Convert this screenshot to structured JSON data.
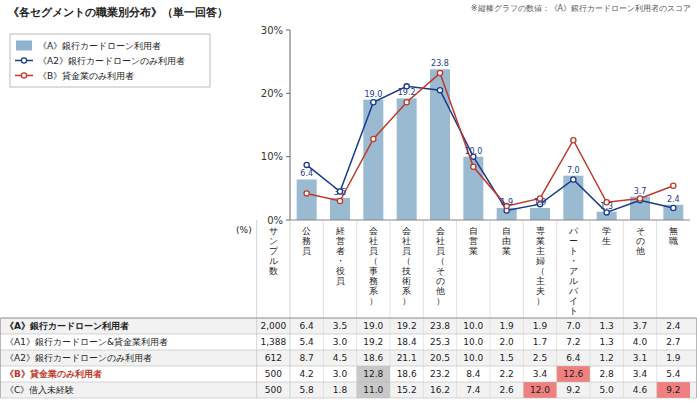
{
  "chart_data": {
    "type": "bar",
    "title": "《各セグメントの職業別分布》（単一回答）",
    "note": "※縦棒グラフの数値：《A》銀行カードローン利用者のスコア",
    "categories": [
      "公務員",
      "経営者・役員",
      "会社員（事務系）",
      "会社員（技術系）",
      "会社員（その他）",
      "自営業",
      "自由業",
      "専業主婦（主夫）",
      "パート・アルバイト",
      "学生",
      "その他",
      "無職"
    ],
    "series": [
      {
        "name": "《A》銀行カードローン利用者",
        "type": "bar",
        "color": "#8fb3cc",
        "values": [
          6.4,
          3.5,
          19.0,
          19.2,
          23.8,
          10.0,
          1.9,
          1.9,
          7.0,
          1.3,
          3.7,
          2.4
        ],
        "value_labels": [
          "6.4",
          "3.5",
          "19.0",
          "19.2",
          "23.8",
          "10.0",
          "1.9",
          "1.9",
          "7.0",
          "1.3",
          "3.7",
          "2.4"
        ],
        "data_labels": true
      },
      {
        "name": "《A2》銀行カードローンのみ利用者",
        "type": "line",
        "color": "#1a3a8c",
        "marker": "circle",
        "values": [
          8.7,
          4.5,
          18.6,
          21.1,
          20.5,
          10.0,
          1.5,
          2.5,
          6.4,
          1.2,
          3.1,
          1.9
        ]
      },
      {
        "name": "《B》貸金業のみ利用者",
        "type": "line",
        "color": "#c0392b",
        "marker": "circle",
        "values": [
          4.2,
          3.0,
          12.8,
          18.6,
          23.2,
          8.4,
          2.2,
          3.4,
          12.6,
          2.8,
          3.4,
          5.4
        ]
      }
    ],
    "ylim": [
      0,
      30
    ],
    "yticks": [
      {
        "value": 0,
        "label": "0%"
      },
      {
        "value": 10,
        "label": "10%"
      },
      {
        "value": 20,
        "label": "20%"
      },
      {
        "value": 30,
        "label": "30%"
      }
    ],
    "grid": false,
    "legend": "left",
    "table": {
      "n_header": "サンプル数",
      "unit": "(%)",
      "rows": [
        {
          "label": "《A》銀行カードローン利用者",
          "n": "2,000",
          "bold": true,
          "values": [
            6.4,
            3.5,
            19.0,
            19.2,
            23.8,
            10.0,
            1.9,
            1.9,
            7.0,
            1.3,
            3.7,
            2.4
          ],
          "value_labels": [
            "6.4",
            "3.5",
            "19.0",
            "19.2",
            "23.8",
            "10.0",
            "1.9",
            "1.9",
            "7.0",
            "1.3",
            "3.7",
            "2.4"
          ],
          "colors": [
            null,
            null,
            null,
            null,
            null,
            null,
            null,
            null,
            null,
            null,
            null,
            null
          ]
        },
        {
          "label": "《A1》銀行カードローン&貸金業利用者",
          "n": "1,388",
          "bold": false,
          "values": [
            5.4,
            3.0,
            19.2,
            18.4,
            25.3,
            10.0,
            2.0,
            1.7,
            7.2,
            1.3,
            4.0,
            2.7
          ],
          "value_labels": [
            "5.4",
            "3.0",
            "19.2",
            "18.4",
            "25.3",
            "10.0",
            "2.0",
            "1.7",
            "7.2",
            "1.3",
            "4.0",
            "2.7"
          ],
          "colors": [
            null,
            null,
            null,
            null,
            null,
            null,
            null,
            null,
            null,
            null,
            null,
            null
          ]
        },
        {
          "label": "《A2》銀行カードローンのみ利用者",
          "n": "612",
          "bold": false,
          "values": [
            8.7,
            4.5,
            18.6,
            21.1,
            20.5,
            10.0,
            1.5,
            2.5,
            6.4,
            1.2,
            3.1,
            1.9
          ],
          "value_labels": [
            "8.7",
            "4.5",
            "18.6",
            "21.1",
            "20.5",
            "10.0",
            "1.5",
            "2.5",
            "6.4",
            "1.2",
            "3.1",
            "1.9"
          ],
          "colors": [
            null,
            null,
            null,
            null,
            null,
            null,
            null,
            null,
            null,
            null,
            null,
            null
          ]
        },
        {
          "label": "《B》貸金業のみ利用者",
          "n": "500",
          "bold": true,
          "color": "#c0392b",
          "values": [
            4.2,
            3.0,
            12.8,
            18.6,
            23.2,
            8.4,
            2.2,
            3.4,
            12.6,
            2.8,
            3.4,
            5.4
          ],
          "value_labels": [
            "4.2",
            "3.0",
            "12.8",
            "18.6",
            "23.2",
            "8.4",
            "2.2",
            "3.4",
            "12.6",
            "2.8",
            "3.4",
            "5.4"
          ],
          "colors": [
            null,
            null,
            "#c8c8c8",
            null,
            null,
            null,
            null,
            null,
            "#f08080",
            null,
            null,
            null
          ]
        },
        {
          "label": "《C》借入未経験",
          "n": "500",
          "bold": false,
          "values": [
            5.8,
            1.8,
            11.0,
            15.2,
            16.2,
            7.4,
            2.6,
            12.0,
            9.2,
            5.0,
            4.6,
            9.2
          ],
          "value_labels": [
            "5.8",
            "1.8",
            "11.0",
            "15.2",
            "16.2",
            "7.4",
            "2.6",
            "12.0",
            "9.2",
            "5.0",
            "4.6",
            "9.2"
          ],
          "colors": [
            null,
            null,
            "#c8c8c8",
            null,
            null,
            null,
            null,
            "#f08080",
            null,
            null,
            null,
            "#f08080"
          ]
        }
      ]
    }
  }
}
